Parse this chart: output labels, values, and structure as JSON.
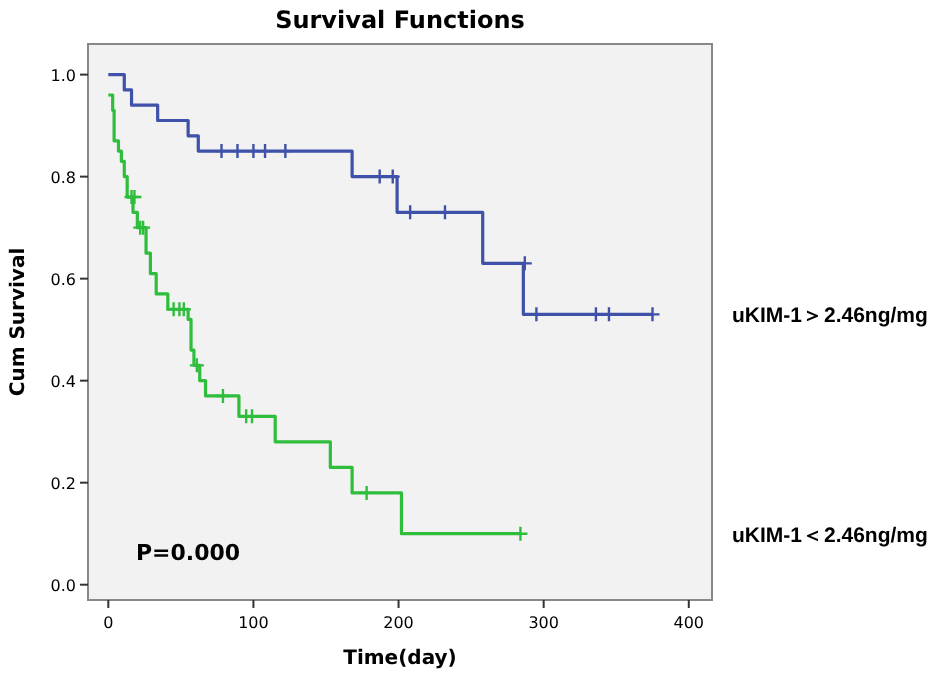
{
  "chart_data": {
    "type": "step",
    "title": "Survival Functions",
    "xlabel": "Time(day)",
    "ylabel": "Cum Survival",
    "xlim": [
      -14,
      416
    ],
    "xticks": [
      0,
      100,
      200,
      300,
      400
    ],
    "ylim": [
      -0.03,
      1.06
    ],
    "yticks": [
      {
        "value": 0,
        "label": "0.0"
      },
      {
        "value": 0.2,
        "label": "0.2"
      },
      {
        "value": 0.4,
        "label": "0.4"
      },
      {
        "value": 0.6,
        "label": "0.6"
      },
      {
        "value": 0.8,
        "label": "0.8"
      },
      {
        "value": 1,
        "label": "1.0"
      }
    ],
    "grid": false,
    "marker": "none",
    "line_style": "solid",
    "annotations": [
      "P=0.000"
    ],
    "series": [
      {
        "name": "uKIM-1＞2.46ng/mg",
        "color": "#3f51a8",
        "x": [
          0,
          11,
          16,
          34,
          55,
          62,
          168,
          199,
          258,
          286,
          375
        ],
        "values": [
          1.0,
          0.97,
          0.94,
          0.91,
          0.88,
          0.85,
          0.8,
          0.73,
          0.63,
          0.53,
          0.53
        ]
      },
      {
        "name": "uKIM-1＜2.46ng/mg",
        "color": "#2fbd3c",
        "x": [
          0,
          3,
          4,
          7,
          9,
          11,
          13,
          17,
          20,
          26,
          29,
          33,
          41,
          55,
          57,
          59,
          63,
          67,
          90,
          115,
          153,
          168,
          202,
          284
        ],
        "values": [
          0.96,
          0.93,
          0.87,
          0.85,
          0.83,
          0.8,
          0.76,
          0.73,
          0.7,
          0.65,
          0.61,
          0.57,
          0.54,
          0.52,
          0.46,
          0.43,
          0.4,
          0.37,
          0.33,
          0.28,
          0.23,
          0.18,
          0.1,
          0.1
        ]
      },
      {
        "type": "scatter",
        "marker": "cross",
        "color": "#3f51a8",
        "x": [
          78,
          89,
          100,
          108,
          122,
          187,
          196,
          208,
          232,
          287,
          295,
          336,
          345,
          375
        ],
        "values": [
          0.85,
          0.85,
          0.85,
          0.85,
          0.85,
          0.8,
          0.8,
          0.73,
          0.73,
          0.63,
          0.53,
          0.53,
          0.53,
          0.53
        ]
      },
      {
        "type": "scatter",
        "marker": "cross",
        "color": "#2fbd3c",
        "x": [
          16,
          18,
          22,
          24,
          45,
          49,
          52,
          61,
          79,
          95,
          99,
          178,
          284
        ],
        "values": [
          0.76,
          0.76,
          0.7,
          0.7,
          0.54,
          0.54,
          0.54,
          0.43,
          0.37,
          0.33,
          0.33,
          0.18,
          0.1
        ]
      }
    ]
  }
}
